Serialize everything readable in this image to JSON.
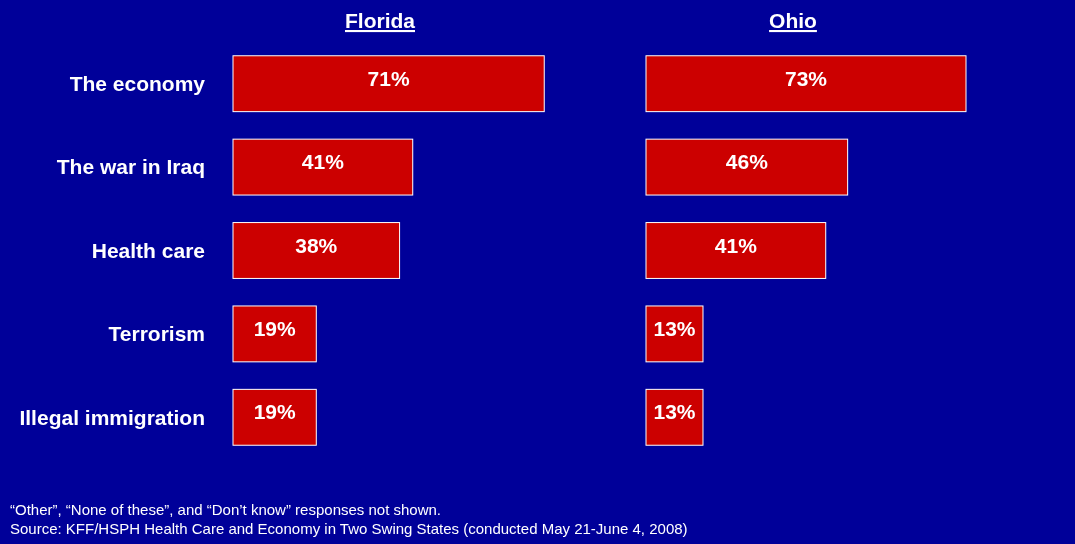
{
  "chart_data": [
    {
      "type": "bar",
      "orientation": "horizontal",
      "title": "Florida",
      "categories": [
        "The economy",
        "The war in Iraq",
        "Health care",
        "Terrorism",
        "Illegal immigration"
      ],
      "values": [
        71,
        41,
        38,
        19,
        19
      ],
      "value_labels": [
        "71%",
        "41%",
        "38%",
        "19%",
        "19%"
      ],
      "color": "#cc0000",
      "tick_labels": "y",
      "annotations": [
        "“Other”, “None of these”, and “Don’t know” responses not shown.",
        "Source: KFF/HSPH Health Care and Economy in Two Swing States (conducted May 21-June 4, 2008)"
      ]
    },
    {
      "type": "bar",
      "orientation": "horizontal",
      "title": "Ohio",
      "categories": [
        "The economy",
        "The war in Iraq",
        "Health care",
        "Terrorism",
        "Illegal immigration"
      ],
      "values": [
        73,
        46,
        41,
        13,
        13
      ],
      "value_labels": [
        "73%",
        "46%",
        "41%",
        "13%",
        "13%"
      ],
      "color": "#cc0000",
      "tick_labels": false
    }
  ]
}
